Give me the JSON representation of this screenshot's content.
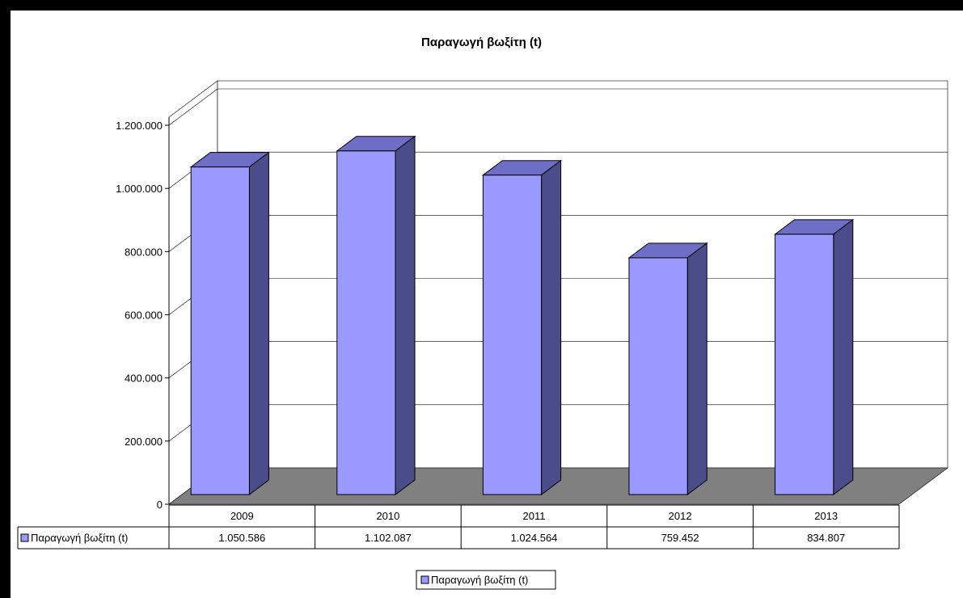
{
  "chart_data": {
    "type": "bar",
    "title": "Παραγωγή βωξίτη (t)",
    "categories": [
      "2009",
      "2010",
      "2011",
      "2012",
      "2013"
    ],
    "series": [
      {
        "name": "Παραγωγή βωξίτη (t)",
        "values": [
          1050586,
          1102087,
          1024564,
          759452,
          834807
        ]
      }
    ],
    "data_labels": [
      "1.050.586",
      "1.102.087",
      "1.024.564",
      "759.452",
      "834.807"
    ],
    "yticks": [
      "0",
      "200.000",
      "400.000",
      "600.000",
      "800.000",
      "1.000.000",
      "1.200.000"
    ],
    "ylim": [
      0,
      1200000
    ],
    "grid": true,
    "legend_position": "bottom",
    "data_table": true,
    "colors": {
      "front": "#9999FF",
      "side": "#4B4C8A",
      "top": "#6E6EC6",
      "floor": "#808080"
    }
  }
}
